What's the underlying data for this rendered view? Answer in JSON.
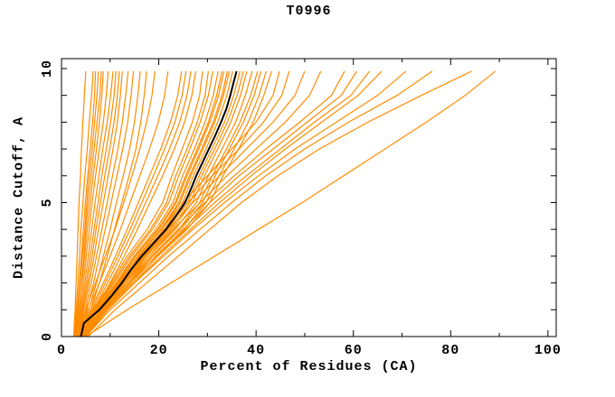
{
  "window": {
    "title": "T0996"
  },
  "axes": {
    "x": {
      "label": "Percent of Residues (CA)",
      "major_ticks": [
        0,
        20,
        40,
        60,
        80,
        100
      ],
      "minor_ticks": [
        10,
        30,
        50,
        70,
        90
      ],
      "range_shown": [
        0,
        100
      ]
    },
    "y": {
      "label": "Distance Cutoff, A",
      "labeled_ticks": [
        0,
        5,
        10
      ],
      "unit_ticks": [
        1,
        2,
        3,
        4,
        5,
        6,
        7,
        8,
        9,
        10
      ],
      "range_shown": [
        0,
        10
      ]
    }
  },
  "colors": {
    "model_line": "#ff8c00",
    "highlight_line": "#000000",
    "axis": "#000000",
    "background": "#ffffff"
  },
  "chart_data": {
    "type": "line",
    "title": "T0996",
    "xlabel": "Percent of Residues (CA)",
    "ylabel": "Distance Cutoff, A",
    "xlim": [
      0,
      101.7
    ],
    "ylim": [
      0,
      10.37
    ],
    "grid": false,
    "legend": "none",
    "highlight_series": {
      "name": "highlighted-model",
      "color": "#000000",
      "points": [
        [
          4.0,
          0
        ],
        [
          4.6,
          0.5
        ],
        [
          7.8,
          1
        ],
        [
          10.2,
          1.5
        ],
        [
          12.4,
          2
        ],
        [
          14.3,
          2.5
        ],
        [
          16.5,
          3
        ],
        [
          19.0,
          3.5
        ],
        [
          21.5,
          4
        ],
        [
          23.5,
          4.5
        ],
        [
          25.4,
          5
        ],
        [
          26.6,
          5.5
        ],
        [
          27.7,
          6
        ],
        [
          29.0,
          6.5
        ],
        [
          30.3,
          7
        ],
        [
          31.6,
          7.5
        ],
        [
          32.8,
          8
        ],
        [
          33.9,
          8.5
        ],
        [
          34.7,
          9
        ],
        [
          35.4,
          9.5
        ],
        [
          36.0,
          9.9
        ]
      ]
    },
    "model_series_color": "#ff8c00",
    "model_series_y_levels": [
      0,
      1,
      2,
      3,
      4,
      5,
      6,
      7,
      8,
      9,
      9.9
    ],
    "model_series": [
      {
        "x": [
          2.5,
          2.8,
          3.0,
          3.2,
          3.4,
          3.6,
          3.9,
          4.1,
          4.4,
          4.7,
          5.0
        ]
      },
      {
        "x": [
          2.6,
          3.0,
          3.4,
          3.7,
          4.0,
          4.4,
          4.8,
          5.3,
          5.7,
          6.2,
          6.5
        ]
      },
      {
        "x": [
          2.7,
          3.2,
          3.7,
          4.1,
          4.5,
          4.9,
          5.4,
          5.9,
          6.4,
          6.8,
          7.0
        ]
      },
      {
        "x": [
          2.8,
          3.3,
          3.8,
          4.3,
          4.8,
          5.2,
          5.7,
          6.3,
          6.8,
          7.3,
          7.6
        ]
      },
      {
        "x": [
          3.0,
          3.6,
          4.1,
          4.6,
          5.0,
          5.5,
          6.1,
          6.7,
          7.3,
          7.9,
          8.2
        ]
      },
      {
        "x": [
          2.9,
          3.5,
          4.2,
          4.8,
          5.3,
          5.9,
          6.5,
          7.2,
          7.8,
          8.3,
          8.6
        ]
      },
      {
        "x": [
          3.1,
          3.8,
          4.5,
          5.1,
          5.7,
          6.3,
          7.0,
          7.8,
          8.6,
          9.2,
          9.6
        ]
      },
      {
        "x": [
          3.2,
          4.0,
          4.8,
          5.5,
          6.2,
          6.9,
          7.7,
          8.5,
          9.4,
          10.1,
          10.6
        ]
      },
      {
        "x": [
          3.3,
          4.2,
          5.1,
          5.9,
          6.7,
          7.5,
          8.3,
          9.2,
          10.1,
          10.8,
          11.2
        ]
      },
      {
        "x": [
          3.4,
          4.4,
          5.4,
          6.3,
          7.1,
          8.0,
          8.9,
          9.9,
          10.8,
          11.5,
          11.9
        ]
      },
      {
        "x": [
          3.5,
          4.6,
          5.7,
          6.7,
          7.6,
          8.6,
          9.6,
          10.6,
          11.5,
          12.1,
          12.5
        ]
      },
      {
        "x": [
          3.6,
          4.9,
          6.1,
          7.2,
          8.3,
          9.4,
          10.5,
          11.6,
          12.5,
          13.2,
          13.7
        ]
      },
      {
        "x": [
          3.7,
          5.2,
          6.6,
          7.8,
          9.0,
          10.2,
          11.4,
          12.6,
          13.6,
          14.3,
          14.8
        ]
      },
      {
        "x": [
          3.8,
          5.6,
          7.2,
          8.6,
          10.0,
          11.3,
          12.7,
          14.0,
          15.0,
          15.7,
          16.2
        ]
      },
      {
        "x": [
          4.0,
          6.0,
          7.8,
          9.4,
          10.9,
          12.4,
          13.9,
          15.3,
          16.3,
          17.0,
          17.5
        ]
      },
      {
        "x": [
          3.0,
          5.0,
          7.0,
          9.0,
          11.0,
          12.8,
          14.5,
          16.1,
          17.5,
          18.6,
          19.2
        ]
      },
      {
        "x": [
          3.2,
          5.5,
          7.8,
          10.0,
          12.1,
          14.1,
          16.1,
          18.1,
          19.9,
          21.2,
          21.9
        ]
      },
      {
        "x": [
          3.4,
          6.0,
          8.6,
          11.1,
          13.5,
          15.8,
          18.1,
          20.4,
          22.4,
          23.9,
          24.7
        ]
      },
      {
        "x": [
          3.5,
          6.3,
          9.0,
          11.6,
          14.1,
          16.5,
          18.9,
          21.2,
          23.3,
          24.8,
          25.6
        ]
      },
      {
        "x": [
          3.6,
          6.6,
          9.5,
          12.2,
          14.8,
          17.3,
          19.8,
          22.2,
          24.3,
          25.8,
          26.6
        ]
      },
      {
        "x": [
          3.8,
          7.0,
          10.0,
          12.9,
          15.6,
          18.2,
          20.8,
          23.2,
          25.3,
          26.8,
          27.6
        ]
      },
      {
        "x": [
          3.3,
          6.4,
          10.2,
          13.5,
          17.6,
          20.8,
          22.7,
          24.8,
          26.9,
          28.4,
          29.0
        ]
      },
      {
        "x": [
          3.4,
          6.6,
          10.5,
          14.0,
          18.3,
          21.6,
          23.5,
          25.8,
          27.9,
          29.5,
          30.2
        ]
      },
      {
        "x": [
          3.5,
          6.8,
          10.8,
          14.4,
          18.7,
          22.1,
          24.1,
          26.4,
          28.5,
          30.2,
          31.1
        ]
      },
      {
        "x": [
          3.6,
          7.0,
          11.2,
          14.9,
          19.4,
          22.9,
          24.9,
          27.3,
          29.5,
          31.2,
          32.2
        ]
      },
      {
        "x": [
          3.7,
          7.2,
          11.4,
          15.2,
          19.8,
          23.4,
          25.5,
          27.9,
          30.2,
          31.9,
          33.0
        ]
      },
      {
        "x": [
          3.7,
          7.3,
          11.5,
          15.3,
          20.0,
          23.6,
          25.8,
          28.2,
          30.5,
          32.3,
          33.4
        ]
      },
      {
        "x": [
          3.8,
          7.4,
          11.8,
          15.7,
          20.4,
          24.1,
          26.3,
          28.8,
          31.2,
          33.0,
          34.1
        ]
      },
      {
        "x": [
          3.8,
          7.5,
          11.9,
          15.8,
          20.6,
          24.4,
          26.6,
          29.1,
          31.5,
          33.3,
          34.5
        ]
      },
      {
        "x": [
          3.9,
          7.6,
          12.2,
          16.2,
          21.1,
          24.9,
          27.1,
          29.7,
          32.1,
          34.0,
          35.2
        ]
      },
      {
        "x": [
          4.1,
          8.0,
          12.6,
          16.8,
          21.9,
          25.9,
          28.3,
          30.9,
          33.5,
          35.4,
          36.7
        ]
      },
      {
        "x": [
          4.2,
          8.1,
          12.9,
          17.2,
          22.4,
          26.4,
          28.8,
          31.5,
          34.1,
          36.1,
          37.4
        ]
      },
      {
        "x": [
          4.2,
          8.3,
          13.1,
          17.5,
          22.8,
          26.9,
          29.4,
          32.1,
          34.8,
          36.8,
          38.1
        ]
      },
      {
        "x": [
          4.4,
          8.5,
          13.5,
          18.0,
          23.4,
          27.7,
          30.2,
          33.0,
          35.8,
          37.8,
          39.2
        ]
      },
      {
        "x": [
          4.5,
          8.7,
          13.9,
          18.5,
          24.1,
          28.4,
          31.0,
          33.9,
          36.7,
          38.9,
          40.3
        ]
      },
      {
        "x": [
          4.6,
          8.9,
          14.1,
          18.8,
          24.5,
          29.0,
          31.6,
          34.5,
          37.4,
          39.6,
          41.0
        ]
      },
      {
        "x": [
          4.7,
          9.1,
          14.5,
          19.3,
          25.2,
          29.7,
          32.4,
          35.5,
          38.4,
          40.6,
          42.1
        ]
      },
      {
        "x": [
          4.8,
          9.4,
          14.9,
          19.8,
          25.8,
          30.5,
          33.2,
          36.4,
          39.4,
          41.6,
          43.2
        ]
      },
      {
        "x": [
          3.9,
          7.5,
          11.5,
          16.0,
          20.5,
          25.0,
          30.0,
          35.0,
          40.0,
          43.5,
          44.8
        ]
      },
      {
        "x": [
          4.0,
          8.0,
          12.0,
          16.5,
          21.0,
          26.0,
          31.0,
          36.5,
          41.5,
          45.3,
          46.8
        ]
      },
      {
        "x": [
          4.0,
          8.0,
          12.5,
          17.0,
          22.0,
          27.0,
          32.5,
          38.0,
          43.5,
          48.0,
          50.0
        ]
      },
      {
        "x": [
          4.2,
          8.5,
          13.0,
          18.0,
          23.0,
          28.5,
          34.0,
          40.0,
          46.0,
          51.0,
          53.3
        ]
      },
      {
        "x": [
          4.4,
          8.5,
          13.5,
          18.5,
          24.0,
          29.5,
          35.5,
          42.0,
          49.0,
          55.5,
          58.2
        ]
      },
      {
        "x": [
          4.5,
          9.0,
          14.0,
          19.5,
          25.0,
          30.5,
          36.5,
          43.5,
          50.5,
          57.5,
          60.7
        ]
      },
      {
        "x": [
          4.6,
          9.0,
          14.0,
          19.5,
          25.5,
          31.5,
          38.0,
          45.0,
          52.0,
          59.5,
          63.3
        ]
      },
      {
        "x": [
          4.8,
          9.5,
          15.0,
          20.5,
          26.5,
          32.5,
          39.0,
          46.0,
          53.5,
          61.0,
          65.8
        ]
      },
      {
        "x": [
          5.0,
          9.5,
          15.0,
          21.0,
          27.0,
          33.5,
          40.5,
          48.0,
          56.5,
          65.0,
          70.8
        ]
      },
      {
        "x": [
          5.0,
          10.0,
          16.0,
          22.0,
          28.5,
          35.0,
          42.0,
          50.0,
          59.0,
          69.0,
          76.2
        ]
      },
      {
        "x": [
          5.5,
          11.0,
          17.5,
          24.0,
          30.5,
          37.0,
          44.5,
          53.0,
          63.0,
          74.0,
          84.3
        ]
      },
      {
        "x": [
          5.0,
          13.5,
          22.5,
          31.5,
          40.5,
          49.5,
          58.0,
          66.5,
          75.0,
          83.0,
          89.2
        ]
      }
    ]
  }
}
